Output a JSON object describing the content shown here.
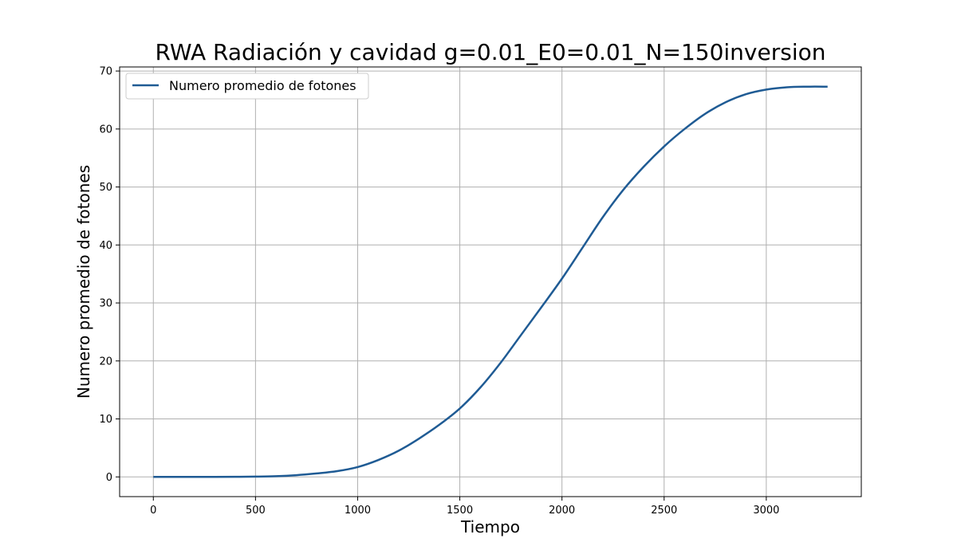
{
  "chart_data": {
    "type": "line",
    "title": "RWA Radiación y cavidad g=0.01_E0=0.01_N=150inversion",
    "xlabel": "Tiempo",
    "ylabel": "Numero promedio de fotones",
    "xlim": [
      -165,
      3465
    ],
    "ylim": [
      -3.4,
      70.7
    ],
    "xticks": [
      0,
      500,
      1000,
      1500,
      2000,
      2500,
      3000
    ],
    "yticks": [
      0,
      10,
      20,
      30,
      40,
      50,
      60,
      70
    ],
    "grid": true,
    "legend_position": "top-left",
    "series": [
      {
        "name": "Numero promedio de fotones",
        "color": "#1f5b94",
        "x": [
          0,
          100,
          200,
          300,
          400,
          500,
          600,
          700,
          800,
          900,
          1000,
          1100,
          1200,
          1300,
          1400,
          1500,
          1600,
          1700,
          1800,
          1900,
          2000,
          2100,
          2200,
          2300,
          2400,
          2500,
          2600,
          2700,
          2800,
          2900,
          3000,
          3100,
          3200,
          3300
        ],
        "y": [
          0,
          0,
          0,
          0,
          0.02,
          0.05,
          0.12,
          0.3,
          0.6,
          1.0,
          1.7,
          2.9,
          4.5,
          6.6,
          9.0,
          11.8,
          15.4,
          19.7,
          24.5,
          29.3,
          34.2,
          39.5,
          44.8,
          49.5,
          53.5,
          57.0,
          60.0,
          62.6,
          64.6,
          66.0,
          66.8,
          67.2,
          67.3,
          67.3
        ]
      }
    ]
  }
}
